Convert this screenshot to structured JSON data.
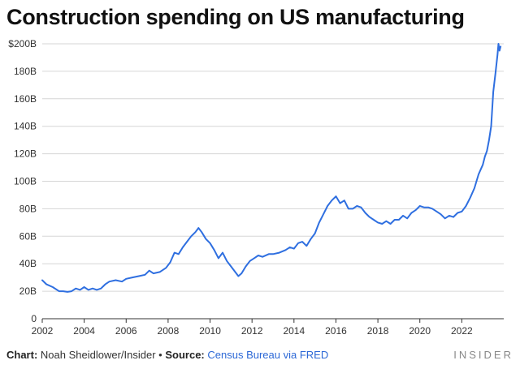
{
  "title": "Construction spending on US manufacturing",
  "footer": {
    "chart_label": "Chart:",
    "chart_author": "Noah Sheidlower/Insider",
    "bullet": "•",
    "source_label": "Source:",
    "source_text": "Census Bureau via FRED"
  },
  "brand": "INSIDER",
  "colors": {
    "line": "#2f6fe0",
    "grid": "#d6d6d6",
    "axis": "#333333",
    "tick_text": "#333333",
    "source_link": "#2c68d6"
  },
  "chart_data": {
    "type": "line",
    "title": "Construction spending on US manufacturing",
    "xlabel": "",
    "ylabel": "",
    "xlim": [
      2002,
      2023.8
    ],
    "ylim": [
      0,
      200
    ],
    "x_ticks": [
      2002,
      2004,
      2006,
      2008,
      2010,
      2012,
      2014,
      2016,
      2018,
      2020,
      2022
    ],
    "y_ticks": [
      0,
      20,
      40,
      60,
      80,
      100,
      120,
      140,
      160,
      180,
      200
    ],
    "y_tick_labels": [
      "0",
      "20B",
      "40B",
      "60B",
      "80B",
      "100B",
      "120B",
      "140B",
      "160B",
      "180B",
      "$200B"
    ],
    "grid": "horizontal",
    "series": [
      {
        "values": [
          [
            2002.0,
            28
          ],
          [
            2002.2,
            25
          ],
          [
            2002.5,
            23
          ],
          [
            2002.8,
            20
          ],
          [
            2003.0,
            20
          ],
          [
            2003.2,
            19.5
          ],
          [
            2003.4,
            20
          ],
          [
            2003.6,
            22
          ],
          [
            2003.8,
            21
          ],
          [
            2004.0,
            23
          ],
          [
            2004.2,
            21
          ],
          [
            2004.4,
            22
          ],
          [
            2004.6,
            21
          ],
          [
            2004.8,
            22
          ],
          [
            2005.0,
            25
          ],
          [
            2005.2,
            27
          ],
          [
            2005.5,
            28
          ],
          [
            2005.8,
            27
          ],
          [
            2006.0,
            29
          ],
          [
            2006.3,
            30
          ],
          [
            2006.6,
            31
          ],
          [
            2006.9,
            32
          ],
          [
            2007.1,
            35
          ],
          [
            2007.3,
            33
          ],
          [
            2007.6,
            34
          ],
          [
            2007.9,
            37
          ],
          [
            2008.1,
            41
          ],
          [
            2008.3,
            48
          ],
          [
            2008.5,
            47
          ],
          [
            2008.7,
            52
          ],
          [
            2008.9,
            56
          ],
          [
            2009.1,
            60
          ],
          [
            2009.3,
            63
          ],
          [
            2009.45,
            66
          ],
          [
            2009.6,
            63
          ],
          [
            2009.8,
            58
          ],
          [
            2010.0,
            55
          ],
          [
            2010.2,
            50
          ],
          [
            2010.4,
            44
          ],
          [
            2010.6,
            48
          ],
          [
            2010.8,
            42
          ],
          [
            2011.0,
            38
          ],
          [
            2011.2,
            34
          ],
          [
            2011.35,
            31
          ],
          [
            2011.5,
            33
          ],
          [
            2011.7,
            38
          ],
          [
            2011.9,
            42
          ],
          [
            2012.1,
            44
          ],
          [
            2012.3,
            46
          ],
          [
            2012.5,
            45
          ],
          [
            2012.8,
            47
          ],
          [
            2013.0,
            47
          ],
          [
            2013.3,
            48
          ],
          [
            2013.6,
            50
          ],
          [
            2013.8,
            52
          ],
          [
            2014.0,
            51
          ],
          [
            2014.2,
            55
          ],
          [
            2014.4,
            56
          ],
          [
            2014.6,
            53
          ],
          [
            2014.8,
            58
          ],
          [
            2015.0,
            62
          ],
          [
            2015.2,
            70
          ],
          [
            2015.4,
            76
          ],
          [
            2015.6,
            82
          ],
          [
            2015.8,
            86
          ],
          [
            2016.0,
            89
          ],
          [
            2016.2,
            84
          ],
          [
            2016.4,
            86
          ],
          [
            2016.6,
            80
          ],
          [
            2016.8,
            80
          ],
          [
            2017.0,
            82
          ],
          [
            2017.2,
            81
          ],
          [
            2017.4,
            77
          ],
          [
            2017.6,
            74
          ],
          [
            2017.8,
            72
          ],
          [
            2018.0,
            70
          ],
          [
            2018.2,
            69
          ],
          [
            2018.4,
            71
          ],
          [
            2018.6,
            69
          ],
          [
            2018.8,
            72
          ],
          [
            2019.0,
            72
          ],
          [
            2019.2,
            75
          ],
          [
            2019.4,
            73
          ],
          [
            2019.6,
            77
          ],
          [
            2019.8,
            79
          ],
          [
            2020.0,
            82
          ],
          [
            2020.2,
            81
          ],
          [
            2020.4,
            81
          ],
          [
            2020.6,
            80
          ],
          [
            2020.8,
            78
          ],
          [
            2021.0,
            76
          ],
          [
            2021.2,
            73
          ],
          [
            2021.4,
            75
          ],
          [
            2021.6,
            74
          ],
          [
            2021.8,
            77
          ],
          [
            2022.0,
            78
          ],
          [
            2022.2,
            82
          ],
          [
            2022.4,
            88
          ],
          [
            2022.6,
            95
          ],
          [
            2022.8,
            105
          ],
          [
            2023.0,
            112
          ],
          [
            2023.1,
            118
          ],
          [
            2023.2,
            122
          ],
          [
            2023.3,
            130
          ],
          [
            2023.4,
            140
          ],
          [
            2023.5,
            165
          ],
          [
            2023.6,
            178
          ],
          [
            2023.7,
            192
          ],
          [
            2023.75,
            200
          ],
          [
            2023.8,
            195
          ],
          [
            2023.85,
            198
          ]
        ]
      }
    ]
  }
}
